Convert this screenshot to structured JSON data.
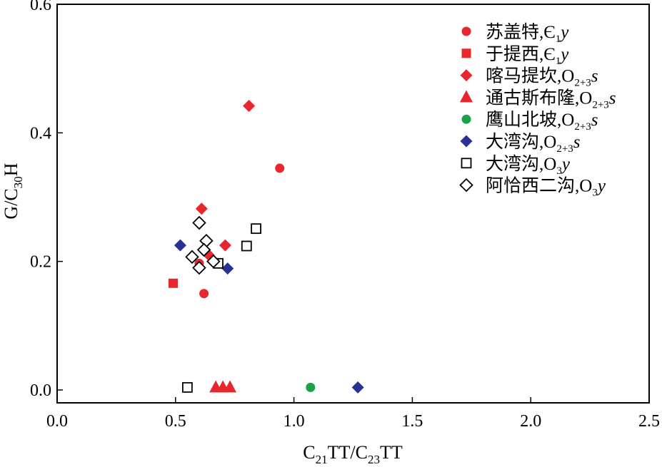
{
  "chart_data": {
    "type": "scatter",
    "xlabel": "C21TT/C23TT",
    "ylabel": "G/C30H",
    "xlim": [
      0.0,
      2.5
    ],
    "ylim": [
      -0.02,
      0.6
    ],
    "x_ticks": [
      "0.0",
      "0.5",
      "1.0",
      "1.5",
      "2.0",
      "2.5"
    ],
    "x_tick_values": [
      0.0,
      0.5,
      1.0,
      1.5,
      2.0,
      2.5
    ],
    "y_ticks": [
      "0.0",
      "0.2",
      "0.4",
      "0.6"
    ],
    "y_tick_values": [
      0.0,
      0.2,
      0.4,
      0.6
    ],
    "grid": false,
    "legend_position": "top-right",
    "series": [
      {
        "name": "苏盖特,Є1y",
        "marker": "circle",
        "color": "#e8262e",
        "filled": true,
        "x": [
          0.94,
          0.6,
          0.62
        ],
        "y": [
          0.345,
          0.197,
          0.15
        ]
      },
      {
        "name": "于提西,Є1y",
        "marker": "square",
        "color": "#e8262e",
        "filled": true,
        "x": [
          0.49
        ],
        "y": [
          0.166
        ]
      },
      {
        "name": "喀马提坎,O2+3s",
        "marker": "diamond",
        "color": "#e8262e",
        "filled": true,
        "x": [
          0.81,
          0.61,
          0.71,
          0.64
        ],
        "y": [
          0.442,
          0.282,
          0.225,
          0.21
        ]
      },
      {
        "name": "通古斯布隆,O2+3s",
        "marker": "triangle",
        "color": "#e8262e",
        "filled": true,
        "x": [
          0.67,
          0.7,
          0.73
        ],
        "y": [
          0.004,
          0.004,
          0.004
        ]
      },
      {
        "name": "鹰山北坡,O2+3s",
        "marker": "circle",
        "color": "#1aa14a",
        "filled": true,
        "x": [
          1.07
        ],
        "y": [
          0.004
        ]
      },
      {
        "name": "大湾沟,O2+3s",
        "marker": "diamond",
        "color": "#2b3192",
        "filled": true,
        "x": [
          0.52,
          0.72,
          1.27
        ],
        "y": [
          0.225,
          0.189,
          0.004
        ]
      },
      {
        "name": "大湾沟,O3y",
        "marker": "square",
        "color": "#000000",
        "filled": false,
        "x": [
          0.84,
          0.8,
          0.68,
          0.55
        ],
        "y": [
          0.251,
          0.224,
          0.197,
          0.004
        ]
      },
      {
        "name": "阿恰西二沟,O3y",
        "marker": "diamond",
        "color": "#000000",
        "filled": false,
        "x": [
          0.6,
          0.63,
          0.62,
          0.57,
          0.66,
          0.6
        ],
        "y": [
          0.26,
          0.232,
          0.218,
          0.207,
          0.2,
          0.19
        ]
      }
    ]
  },
  "legend": [
    {
      "main": "苏盖特,Є",
      "sub": "1",
      "tail": "y",
      "tail_italic": true
    },
    {
      "main": "于提西,Є",
      "sub": "1",
      "tail": "y",
      "tail_italic": true
    },
    {
      "main": "喀马提坎,O",
      "sub": "2+3",
      "tail": "s",
      "tail_italic": true
    },
    {
      "main": "通古斯布隆,O",
      "sub": "2+3",
      "tail": "s",
      "tail_italic": true
    },
    {
      "main": "鹰山北坡,O",
      "sub": "2+3",
      "tail": "s",
      "tail_italic": true
    },
    {
      "main": "大湾沟,O",
      "sub": "2+3",
      "tail": "s",
      "tail_italic": true
    },
    {
      "main": "大湾沟,O",
      "sub": "3",
      "tail": "y",
      "tail_italic": true
    },
    {
      "main": "阿恰西二沟,O",
      "sub": "3",
      "tail": "y",
      "tail_italic": true
    }
  ],
  "axis_titles": {
    "x": {
      "p1": "C",
      "s1": "21",
      "p2": "TT/C",
      "s2": "23",
      "p3": "TT"
    },
    "y": {
      "p1": "G/C",
      "s1": "30",
      "p2": "H"
    }
  }
}
